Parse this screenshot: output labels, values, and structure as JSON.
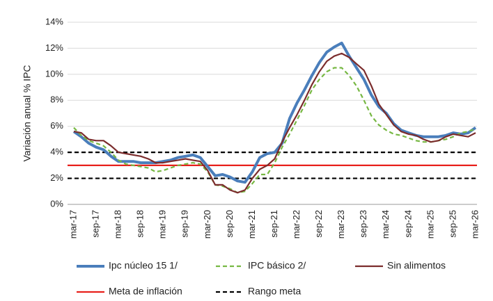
{
  "chart_data": {
    "type": "line",
    "y_label": "Variación anual % IPC",
    "categories": [
      "mar-17",
      null,
      null,
      "sep-17",
      null,
      null,
      "mar-18",
      null,
      null,
      "sep-18",
      null,
      null,
      "mar-19",
      null,
      null,
      "sep-19",
      null,
      null,
      "mar-20",
      null,
      null,
      "sep-20",
      null,
      null,
      "mar-21",
      null,
      null,
      "sep-21",
      null,
      null,
      "mar-22",
      null,
      null,
      "sep-22",
      null,
      null,
      "mar-23",
      null,
      null,
      "sep-23",
      null,
      null,
      "mar-24",
      null,
      null,
      "sep-24",
      null,
      null,
      "mar-25",
      null,
      null,
      "sep-25",
      null,
      null,
      "mar-26"
    ],
    "series": [
      {
        "name": "Ipc núcleo 15 1/",
        "color": "#4a7ebb",
        "width": 4,
        "dash": "none",
        "values": [
          5.6,
          5.2,
          4.7,
          4.4,
          4.2,
          3.7,
          3.3,
          3.3,
          3.3,
          3.2,
          3.2,
          3.2,
          3.3,
          3.4,
          3.6,
          3.7,
          3.8,
          3.6,
          2.9,
          2.2,
          2.3,
          2.1,
          1.8,
          1.7,
          2.5,
          3.6,
          3.9,
          4.0,
          4.7,
          6.6,
          7.8,
          8.8,
          9.9,
          10.9,
          11.7,
          12.1,
          12.4,
          11.4,
          10.5,
          9.6,
          8.4,
          7.5,
          7.0,
          6.2,
          5.7,
          5.5,
          5.3,
          5.2,
          5.2,
          5.2,
          5.3,
          5.5,
          5.4,
          5.5,
          5.9
        ]
      },
      {
        "name": "IPC básico 2/",
        "color": "#77b843",
        "width": 2.2,
        "dash": "6 4",
        "values": [
          5.9,
          5.3,
          4.9,
          4.7,
          4.5,
          4.0,
          3.4,
          3.1,
          3.0,
          2.9,
          2.8,
          2.5,
          2.6,
          2.8,
          3.0,
          3.1,
          3.2,
          3.1,
          2.5,
          1.5,
          1.4,
          1.2,
          0.9,
          1.0,
          1.6,
          2.3,
          2.3,
          3.2,
          4.4,
          5.4,
          6.5,
          7.6,
          8.8,
          9.6,
          10.2,
          10.5,
          10.5,
          9.9,
          9.1,
          8.0,
          6.8,
          6.1,
          5.7,
          5.4,
          5.3,
          5.1,
          4.9,
          4.8,
          4.8,
          4.9,
          5.0,
          5.2,
          5.5,
          5.6,
          5.8
        ]
      },
      {
        "name": "Sin alimentos",
        "color": "#7b2c2c",
        "width": 2.2,
        "dash": "none",
        "values": [
          5.6,
          5.5,
          5.0,
          4.9,
          4.9,
          4.5,
          4.0,
          3.9,
          3.8,
          3.7,
          3.5,
          3.2,
          3.2,
          3.3,
          3.4,
          3.5,
          3.4,
          3.3,
          2.6,
          1.5,
          1.5,
          1.1,
          0.9,
          1.1,
          2.0,
          2.7,
          3.0,
          3.5,
          4.8,
          5.9,
          6.9,
          8.0,
          9.2,
          10.2,
          11.0,
          11.4,
          11.6,
          11.3,
          10.8,
          10.3,
          9.1,
          7.7,
          6.9,
          6.1,
          5.6,
          5.4,
          5.3,
          5.0,
          4.8,
          4.9,
          5.2,
          5.4,
          5.3,
          5.2,
          5.5
        ]
      }
    ],
    "target": {
      "name": "Meta de inflación",
      "value": 3,
      "color": "#e8201c"
    },
    "range": {
      "name": "Rango meta",
      "values": [
        2,
        4
      ],
      "color": "#000000"
    },
    "ylim": [
      0,
      14
    ],
    "yticks": [
      {
        "value": 0,
        "label": "0%"
      },
      {
        "value": 2,
        "label": "2%"
      },
      {
        "value": 4,
        "label": "4%"
      },
      {
        "value": 6,
        "label": "6%"
      },
      {
        "value": 8,
        "label": "8%"
      },
      {
        "value": 10,
        "label": "10%"
      },
      {
        "value": 12,
        "label": "12%"
      },
      {
        "value": 14,
        "label": "14%"
      }
    ],
    "grid": true
  }
}
